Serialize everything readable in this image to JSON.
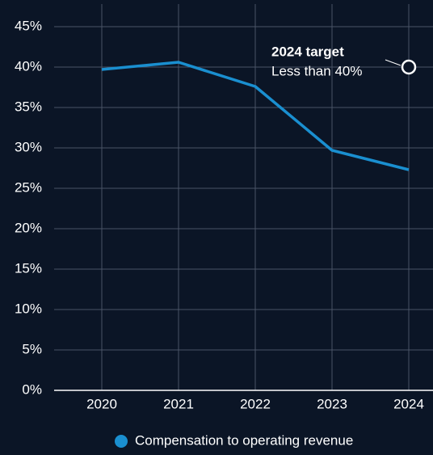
{
  "chart_data": {
    "type": "line",
    "categories": [
      "2020",
      "2021",
      "2022",
      "2023",
      "2024"
    ],
    "series": [
      {
        "name": "Compensation to operating revenue",
        "color": "#1a8fd0",
        "values": [
          39.7,
          40.6,
          37.6,
          29.7,
          27.3
        ]
      }
    ],
    "ylim": [
      0,
      45
    ],
    "yticks": [
      {
        "value": 0,
        "label": "0%"
      },
      {
        "value": 5,
        "label": "5%"
      },
      {
        "value": 10,
        "label": "10%"
      },
      {
        "value": 15,
        "label": "15%"
      },
      {
        "value": 20,
        "label": "20%"
      },
      {
        "value": 25,
        "label": "25%"
      },
      {
        "value": 30,
        "label": "30%"
      },
      {
        "value": 35,
        "label": "35%"
      },
      {
        "value": 40,
        "label": "40%"
      },
      {
        "value": 45,
        "label": "45%"
      }
    ],
    "grid": true,
    "annotations": [
      {
        "title": "2024 target",
        "text": "Less than 40%",
        "x": "2024",
        "y": 40
      }
    ]
  }
}
